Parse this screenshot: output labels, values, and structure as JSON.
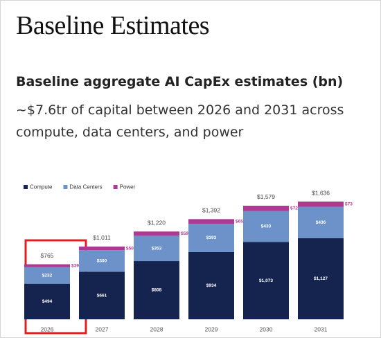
{
  "header": {
    "title": "Baseline Estimates"
  },
  "chart_data": {
    "type": "stacked-bar",
    "title": "Baseline aggregate AI CapEx estimates (bn)",
    "subtitle": "~$7.6tr of capital between 2026 and 2031 across compute, data centers, and power",
    "categories": [
      "2026",
      "2027",
      "2028",
      "2029",
      "2030",
      "2031"
    ],
    "series": [
      {
        "name": "Compute",
        "color": "#15244f",
        "values": [
          494,
          661,
          808,
          934,
          1073,
          1127
        ],
        "value_labels": [
          "$494",
          "$661",
          "$808",
          "$934",
          "$1,073",
          "$1,127"
        ]
      },
      {
        "name": "Data Centers",
        "color": "#6c92c9",
        "values": [
          232,
          300,
          353,
          393,
          433,
          436
        ],
        "value_labels": [
          "$232",
          "$300",
          "$353",
          "$393",
          "$433",
          "$436"
        ]
      },
      {
        "name": "Power",
        "color": "#ad3a92",
        "values": [
          39,
          50,
          59,
          65,
          72,
          73
        ],
        "value_labels": [
          "$39",
          "$50",
          "$59",
          "$65",
          "$72",
          "$73"
        ]
      }
    ],
    "totals": [
      765,
      1011,
      1220,
      1392,
      1579,
      1636
    ],
    "total_labels": [
      "$765",
      "$1,011",
      "$1,220",
      "$1,392",
      "$1,579",
      "$1,636"
    ],
    "legend": "top-left"
  }
}
